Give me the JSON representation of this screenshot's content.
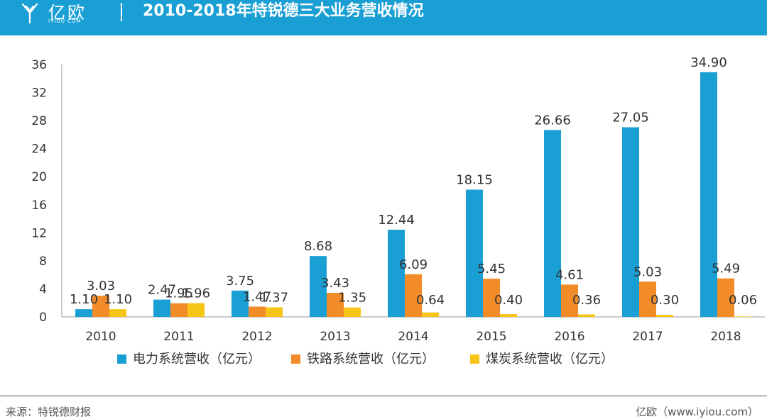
{
  "header": {
    "logo_text": "亿欧",
    "logo_sub": "IYIOU·COM",
    "title": "2010-2018年特锐德三大业务营收情况"
  },
  "footer": {
    "source": "来源：特锐德财报",
    "credit": "亿欧（www.iyiou.com）"
  },
  "colors": {
    "header": "#1a9fd5",
    "series1": "#1a9fd5",
    "series2": "#f28c28",
    "series3": "#f5c518"
  },
  "chart_data": {
    "type": "bar",
    "title": "2010-2018年特锐德三大业务营收情况",
    "categories": [
      "2010",
      "2011",
      "2012",
      "2013",
      "2014",
      "2015",
      "2016",
      "2017",
      "2018"
    ],
    "series": [
      {
        "name": "电力系统营收（亿元）",
        "values": [
          1.1,
          2.47,
          3.75,
          8.68,
          12.44,
          18.15,
          26.66,
          27.05,
          34.9
        ],
        "labels": [
          "1.10",
          "2.47",
          "3.75",
          "8.68",
          "12.44",
          "18.15",
          "26.66",
          "27.05",
          "34.90"
        ]
      },
      {
        "name": "铁路系统营收（亿元）",
        "values": [
          3.03,
          1.95,
          1.47,
          3.43,
          6.09,
          5.45,
          4.61,
          5.03,
          5.49
        ],
        "labels": [
          "3.03",
          "1.95",
          "1.47",
          "3.43",
          "6.09",
          "5.45",
          "4.61",
          "5.03",
          "5.49"
        ]
      },
      {
        "name": "煤炭系统营收（亿元）",
        "values": [
          1.1,
          1.96,
          1.37,
          1.35,
          0.64,
          0.4,
          0.36,
          0.3,
          0.06
        ],
        "labels": [
          "1.10",
          "1.96",
          "1.37",
          "1.35",
          "0.64",
          "0.40",
          "0.36",
          "0.30",
          "0.06"
        ]
      }
    ],
    "yticks": [
      "0",
      "4",
      "8",
      "12",
      "16",
      "20",
      "24",
      "28",
      "32",
      "36"
    ],
    "ylim": [
      0,
      36
    ],
    "xlabel": "",
    "ylabel": "",
    "legend": "bottom",
    "grid": false
  }
}
